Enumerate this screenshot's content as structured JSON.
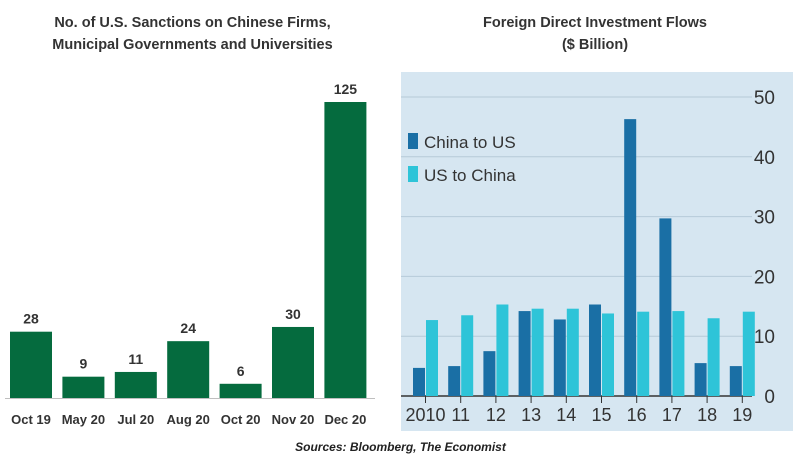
{
  "chart_data": [
    {
      "type": "bar",
      "title_lines": [
        "No. of U.S. Sanctions on Chinese Firms,",
        "Municipal Governments and Universities"
      ],
      "categories": [
        "Oct 19",
        "May 20",
        "Jul 20",
        "Aug 20",
        "Oct 20",
        "Nov 20",
        "Dec 20"
      ],
      "values": [
        28,
        9,
        11,
        24,
        6,
        30,
        125
      ],
      "data_labels": [
        "28",
        "9",
        "11",
        "24",
        "6",
        "30",
        "125"
      ],
      "ylim": [
        0,
        125
      ],
      "grid": false,
      "colors": {
        "bar": "#056b3e"
      }
    },
    {
      "type": "bar",
      "title_lines": [
        "Foreign Direct Investment Flows",
        "($ Billion)"
      ],
      "categories": [
        "2010",
        "11",
        "12",
        "13",
        "14",
        "15",
        "16",
        "17",
        "18",
        "19"
      ],
      "series": [
        {
          "name": "China to US",
          "values": [
            4.7,
            5,
            7.5,
            14.2,
            12.8,
            15.3,
            46.3,
            29.7,
            5.5,
            5
          ]
        },
        {
          "name": "US to China",
          "values": [
            12.7,
            13.5,
            15.3,
            14.6,
            14.6,
            13.8,
            14.1,
            14.2,
            13,
            14.1
          ]
        }
      ],
      "ylim": [
        0,
        50
      ],
      "yticks": [
        "0",
        "10",
        "20",
        "30",
        "40",
        "50"
      ],
      "grid": true,
      "legend": "top-left",
      "colors": {
        "background": "#d6e6f1",
        "grid": "#b6cad8",
        "china_to_us": "#1a6fa5",
        "us_to_china": "#2ec4d8"
      }
    }
  ],
  "source": "Sources: Bloomberg, The Economist"
}
